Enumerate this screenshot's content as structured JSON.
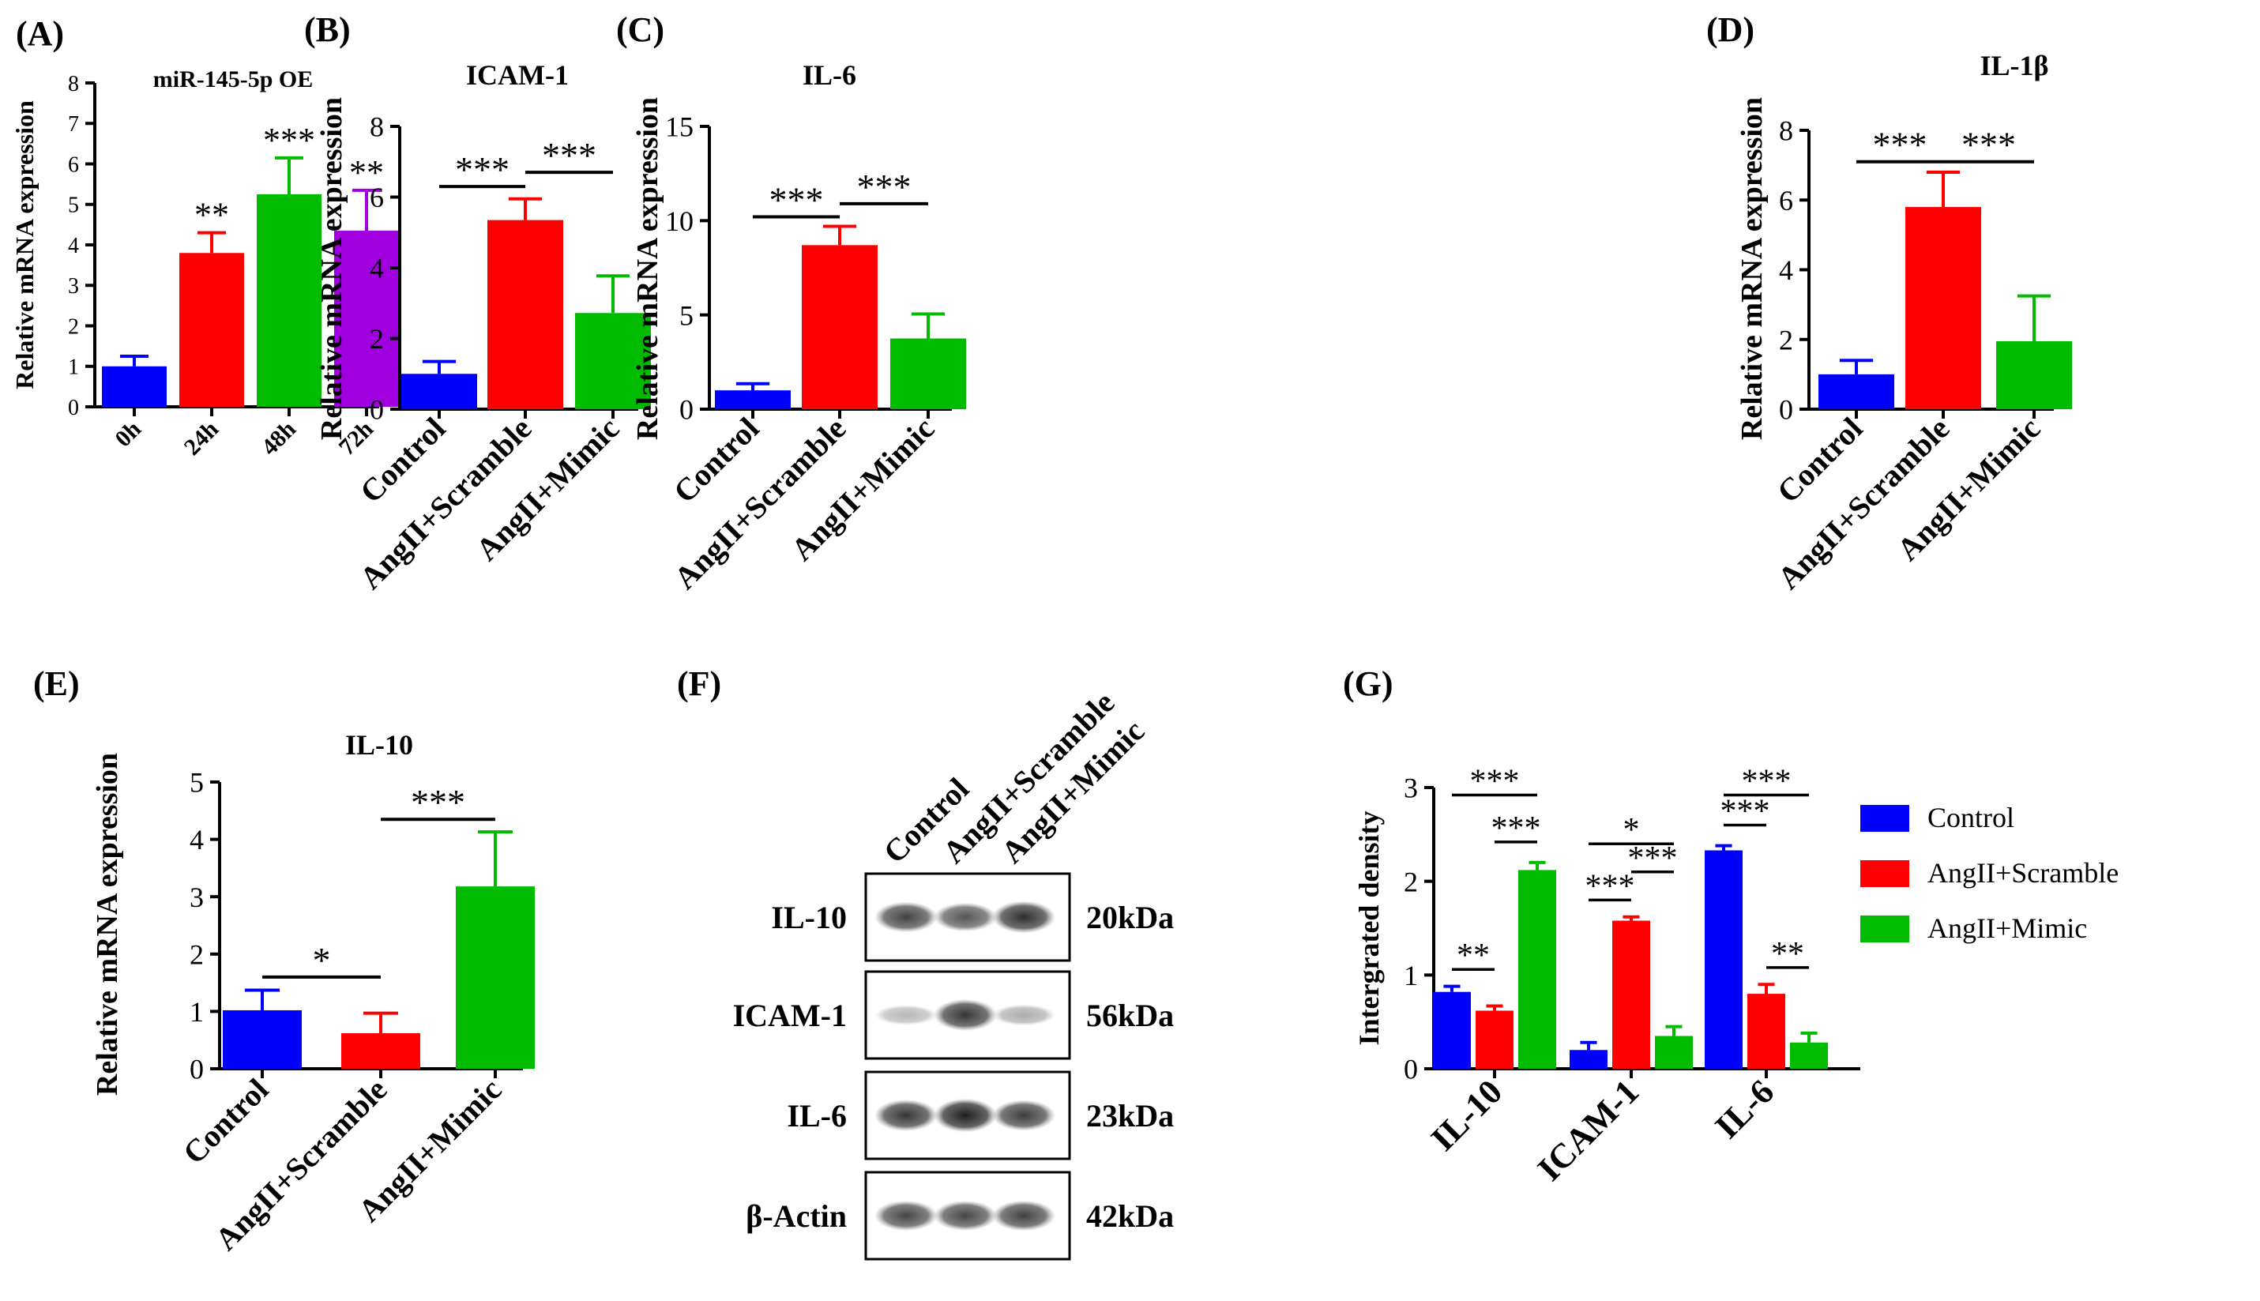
{
  "chart_data": [
    {
      "id": "A",
      "panel_label": "(A)",
      "type": "bar",
      "title": "miR-145-5p OE",
      "ylabel": "Relative mRNA expression",
      "xlabel": "",
      "ylim": [
        0,
        8
      ],
      "yticks": [
        "0",
        "1",
        "2",
        "3",
        "4",
        "5",
        "6",
        "7",
        "8"
      ],
      "categories": [
        "0h",
        "24h",
        "48h",
        "72h"
      ],
      "values": [
        1.0,
        3.8,
        5.25,
        4.35
      ],
      "errors": [
        0.25,
        0.5,
        0.9,
        1.0
      ],
      "colors": [
        "#0000ff",
        "#ff0000",
        "#00bb00",
        "#a000e0"
      ],
      "sig_labels": [
        "",
        "**",
        "***",
        "**"
      ],
      "brackets": []
    },
    {
      "id": "B",
      "panel_label": "(B)",
      "type": "bar",
      "title": "ICAM-1",
      "ylabel": "Relative mRNA expression",
      "xlabel": "",
      "ylim": [
        0,
        8
      ],
      "yticks": [
        "0",
        "2",
        "4",
        "6",
        "8"
      ],
      "categories": [
        "Control",
        "AngII+Scramble",
        "AngII+Mimic"
      ],
      "values": [
        1.0,
        5.35,
        2.72
      ],
      "errors": [
        0.35,
        0.6,
        1.05
      ],
      "colors": [
        "#0000ff",
        "#ff0000",
        "#00bb00"
      ],
      "sig_labels": [
        "",
        "",
        ""
      ],
      "brackets": [
        {
          "from": 0,
          "to": 1,
          "y": 6.3,
          "label": "***"
        },
        {
          "from": 1,
          "to": 2,
          "y": 6.7,
          "label": "***"
        }
      ]
    },
    {
      "id": "C",
      "panel_label": "(C)",
      "type": "bar",
      "title": "IL-6",
      "ylabel": "Relative mRNA expression",
      "xlabel": "",
      "ylim": [
        0,
        15
      ],
      "yticks": [
        "0",
        "5",
        "10",
        "15"
      ],
      "categories": [
        "Control",
        "AngII+Scramble",
        "AngII+Mimic"
      ],
      "values": [
        1.0,
        8.7,
        3.75
      ],
      "errors": [
        0.35,
        1.0,
        1.3
      ],
      "colors": [
        "#0000ff",
        "#ff0000",
        "#00bb00"
      ],
      "sig_labels": [
        "",
        "",
        ""
      ],
      "brackets": [
        {
          "from": 0,
          "to": 1,
          "y": 10.2,
          "label": "***"
        },
        {
          "from": 1,
          "to": 2,
          "y": 10.9,
          "label": "***"
        }
      ]
    },
    {
      "id": "D",
      "panel_label": "(D)",
      "type": "bar",
      "title": "IL-1β",
      "ylabel": "Relative mRNA expression",
      "xlabel": "",
      "ylim": [
        0,
        8
      ],
      "yticks": [
        "0",
        "2",
        "4",
        "6",
        "8"
      ],
      "categories": [
        "Control",
        "AngII+Scramble",
        "AngII+Mimic"
      ],
      "values": [
        1.0,
        5.8,
        1.95
      ],
      "errors": [
        0.4,
        1.0,
        1.3
      ],
      "colors": [
        "#0000ff",
        "#ff0000",
        "#00bb00"
      ],
      "sig_labels": [
        "",
        "",
        ""
      ],
      "brackets": [
        {
          "from": 0,
          "to": 1,
          "y": 7.1,
          "label": "***"
        },
        {
          "from": 1,
          "to": 2,
          "y": 7.1,
          "label": "***"
        }
      ]
    },
    {
      "id": "E",
      "panel_label": "(E)",
      "type": "bar",
      "title": "IL-10",
      "ylabel": "Relative mRNA expression",
      "xlabel": "",
      "ylim": [
        0,
        5
      ],
      "yticks": [
        "0",
        "1",
        "2",
        "3",
        "4",
        "5"
      ],
      "categories": [
        "Control",
        "AngII+Scramble",
        "AngII+Mimic"
      ],
      "values": [
        1.02,
        0.62,
        3.18
      ],
      "errors": [
        0.35,
        0.35,
        0.95
      ],
      "colors": [
        "#0000ff",
        "#ff0000",
        "#00bb00"
      ],
      "sig_labels": [
        "",
        "",
        ""
      ],
      "brackets": [
        {
          "from": 0,
          "to": 1,
          "y": 1.6,
          "label": "*"
        },
        {
          "from": 1,
          "to": 2,
          "y": 4.35,
          "label": "***"
        }
      ]
    },
    {
      "id": "G",
      "panel_label": "(G)",
      "type": "bar",
      "title": "",
      "ylabel": "Intergrated density",
      "xlabel": "",
      "ylim": [
        0,
        3
      ],
      "yticks": [
        "0",
        "1",
        "2",
        "3"
      ],
      "categories": [
        "IL-10",
        "ICAM-1",
        "IL-6"
      ],
      "series": [
        {
          "name": "Control",
          "color": "#0000ff",
          "values": [
            0.82,
            0.2,
            2.33
          ],
          "errors": [
            0.06,
            0.08,
            0.05
          ]
        },
        {
          "name": "AngII+Scramble",
          "color": "#ff0000",
          "values": [
            0.62,
            1.58,
            0.8
          ],
          "errors": [
            0.05,
            0.04,
            0.1
          ]
        },
        {
          "name": "AngII+Mimic",
          "color": "#00bb00",
          "values": [
            2.12,
            0.35,
            0.28
          ],
          "errors": [
            0.08,
            0.1,
            0.1
          ]
        }
      ],
      "legend_position": "right",
      "brackets": [
        {
          "group": 0,
          "from": 0,
          "to": 1,
          "y": 1.06,
          "label": "**"
        },
        {
          "group": 0,
          "from": 0,
          "to": 2,
          "y": 2.92,
          "label": "***"
        },
        {
          "group": 0,
          "from": 1,
          "to": 2,
          "y": 2.42,
          "label": "***"
        },
        {
          "group": 1,
          "from": 0,
          "to": 1,
          "y": 1.8,
          "label": "***"
        },
        {
          "group": 1,
          "from": 0,
          "to": 2,
          "y": 2.4,
          "label": "*"
        },
        {
          "group": 1,
          "from": 1,
          "to": 2,
          "y": 2.1,
          "label": "***"
        },
        {
          "group": 2,
          "from": 0,
          "to": 1,
          "y": 2.6,
          "label": "***"
        },
        {
          "group": 2,
          "from": 0,
          "to": 2,
          "y": 2.92,
          "label": "***"
        },
        {
          "group": 2,
          "from": 1,
          "to": 2,
          "y": 1.08,
          "label": "**"
        }
      ]
    }
  ],
  "western_blot": {
    "panel_label": "(F)",
    "lanes": [
      "Control",
      "AngII+Scramble",
      "AngII+Mimic"
    ],
    "rows": [
      {
        "protein": "IL-10",
        "size": "20kDa",
        "band_intensity": [
          0.8,
          0.72,
          0.88
        ]
      },
      {
        "protein": "ICAM-1",
        "size": "56kDa",
        "band_intensity": [
          0.3,
          0.85,
          0.35
        ]
      },
      {
        "protein": "IL-6",
        "size": "23kDa",
        "band_intensity": [
          0.85,
          0.95,
          0.82
        ]
      },
      {
        "protein": "β-Actin",
        "size": "42kDa",
        "band_intensity": [
          0.78,
          0.78,
          0.8
        ]
      }
    ]
  }
}
